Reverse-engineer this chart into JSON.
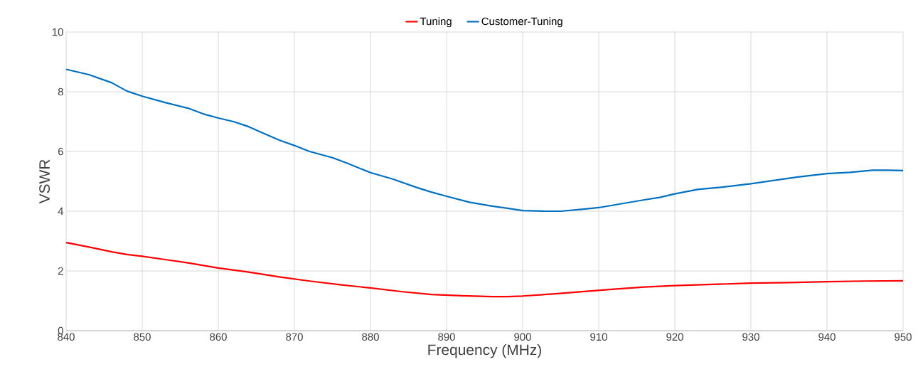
{
  "chart_data": {
    "type": "line",
    "xlabel": "Frequency (MHz)",
    "ylabel": "VSWR",
    "xlim": [
      840,
      950
    ],
    "ylim": [
      0,
      10
    ],
    "xticks": [
      840,
      850,
      860,
      870,
      880,
      890,
      900,
      910,
      920,
      930,
      940,
      950
    ],
    "yticks": [
      0,
      2,
      4,
      6,
      8,
      10
    ],
    "grid": true,
    "legend": "top",
    "marker": "none",
    "line_style": "solid",
    "series": [
      {
        "name": "Tuning",
        "color": "#ff0000",
        "x": [
          840,
          843,
          846,
          848,
          850,
          853,
          856,
          860,
          864,
          868,
          872,
          876,
          880,
          884,
          888,
          892,
          896,
          898,
          900,
          904,
          908,
          912,
          916,
          920,
          925,
          930,
          935,
          940,
          945,
          950
        ],
        "values": [
          2.95,
          2.8,
          2.64,
          2.55,
          2.49,
          2.38,
          2.27,
          2.1,
          1.96,
          1.8,
          1.66,
          1.54,
          1.43,
          1.31,
          1.21,
          1.17,
          1.14,
          1.14,
          1.16,
          1.23,
          1.31,
          1.39,
          1.46,
          1.51,
          1.55,
          1.59,
          1.61,
          1.64,
          1.66,
          1.67
        ]
      },
      {
        "name": "Customer-Tuning",
        "color": "#0070c0",
        "x": [
          840,
          843,
          846,
          848,
          850,
          853,
          856,
          858,
          860,
          862,
          864,
          866,
          868,
          870,
          872,
          875,
          877,
          880,
          883,
          886,
          888,
          890,
          893,
          896,
          898,
          900,
          903,
          905,
          908,
          910,
          913,
          916,
          918,
          920,
          923,
          926,
          928,
          930,
          933,
          936,
          938,
          940,
          943,
          946,
          948,
          950
        ],
        "values": [
          8.75,
          8.57,
          8.3,
          8.02,
          7.85,
          7.64,
          7.45,
          7.26,
          7.12,
          7.0,
          6.83,
          6.6,
          6.38,
          6.2,
          6.0,
          5.79,
          5.6,
          5.29,
          5.07,
          4.8,
          4.64,
          4.5,
          4.3,
          4.17,
          4.1,
          4.02,
          4.0,
          4.0,
          4.07,
          4.12,
          4.25,
          4.38,
          4.46,
          4.58,
          4.73,
          4.8,
          4.86,
          4.92,
          5.03,
          5.14,
          5.2,
          5.26,
          5.3,
          5.37,
          5.37,
          5.36
        ]
      }
    ]
  }
}
